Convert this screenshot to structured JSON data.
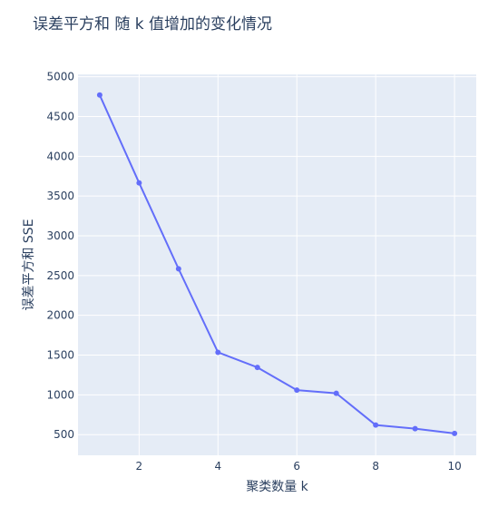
{
  "chart_data": {
    "type": "line",
    "title": "误差平方和 随 k 值增加的变化情况",
    "xlabel": "聚类数量 k",
    "ylabel": "误差平方和 SSE",
    "x": [
      1,
      2,
      3,
      4,
      5,
      6,
      7,
      8,
      9,
      10
    ],
    "y": [
      4770,
      3665,
      2585,
      1535,
      1345,
      1060,
      1020,
      620,
      575,
      515
    ],
    "xlim": [
      0.45,
      10.55
    ],
    "ylim": [
      240,
      5030
    ],
    "xticks": [
      2,
      4,
      6,
      8,
      10
    ],
    "yticks": [
      500,
      1000,
      1500,
      2000,
      2500,
      3000,
      3500,
      4000,
      4500,
      5000
    ],
    "grid": true,
    "mode": "lines+markers",
    "colors": {
      "line": "#636efa",
      "plot_bg": "#e5ecf6",
      "grid": "#ffffff",
      "text": "#2a3f5f"
    }
  }
}
